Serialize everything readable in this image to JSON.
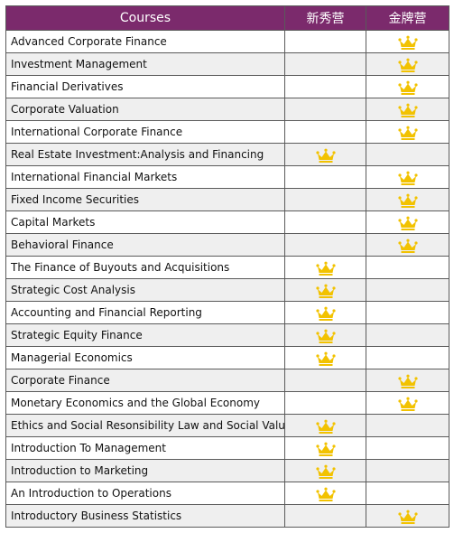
{
  "table": {
    "header": [
      "Courses",
      "新秀营",
      "金牌营"
    ],
    "rows": [
      {
        "course": "Advanced Corporate Finance",
        "marks": [
          false,
          true
        ]
      },
      {
        "course": "Investment Management",
        "marks": [
          false,
          true
        ]
      },
      {
        "course": "Financial Derivatives",
        "marks": [
          false,
          true
        ]
      },
      {
        "course": "Corporate Valuation",
        "marks": [
          false,
          true
        ]
      },
      {
        "course": "International Corporate Finance",
        "marks": [
          false,
          true
        ]
      },
      {
        "course": "Real Estate Investment:Analysis and Financing",
        "marks": [
          true,
          false
        ]
      },
      {
        "course": "International Financial Markets",
        "marks": [
          false,
          true
        ]
      },
      {
        "course": "Fixed Income Securities",
        "marks": [
          false,
          true
        ]
      },
      {
        "course": "Capital Markets",
        "marks": [
          false,
          true
        ]
      },
      {
        "course": "Behavioral Finance",
        "marks": [
          false,
          true
        ]
      },
      {
        "course": "The Finance of Buyouts and Acquisitions",
        "marks": [
          true,
          false
        ]
      },
      {
        "course": "Strategic Cost Analysis",
        "marks": [
          true,
          false
        ]
      },
      {
        "course": "Accounting and Financial Reporting",
        "marks": [
          true,
          false
        ]
      },
      {
        "course": "Strategic Equity Finance",
        "marks": [
          true,
          false
        ]
      },
      {
        "course": "Managerial Economics",
        "marks": [
          true,
          false
        ]
      },
      {
        "course": "Corporate Finance",
        "marks": [
          false,
          true
        ]
      },
      {
        "course": "Monetary Economics and  the Global Economy",
        "marks": [
          false,
          true
        ]
      },
      {
        "course": "Ethics and Social Resonsibility Law and Social Values",
        "marks": [
          true,
          false
        ]
      },
      {
        "course": "Introduction To Management",
        "marks": [
          true,
          false
        ]
      },
      {
        "course": "Introduction to Marketing",
        "marks": [
          true,
          false
        ]
      },
      {
        "course": "An Introduction to Operations",
        "marks": [
          true,
          false
        ]
      },
      {
        "course": "Introductory Business Statistics",
        "marks": [
          false,
          true
        ]
      }
    ]
  }
}
